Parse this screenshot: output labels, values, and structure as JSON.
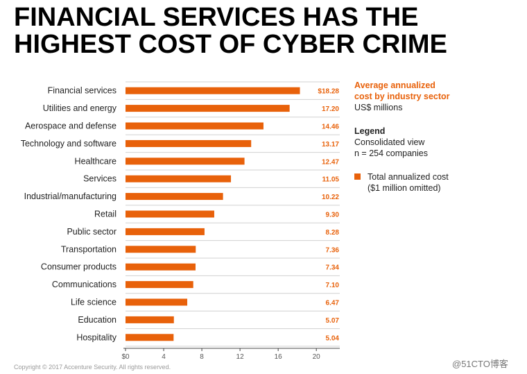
{
  "title": {
    "line1": "FINANCIAL SERVICES HAS THE",
    "line2": "HIGHEST COST OF CYBER CRIME"
  },
  "side_panel": {
    "subtitle_line1": "Average annualized",
    "subtitle_line2": "cost by industry sector",
    "unit": "US$ millions",
    "legend_heading": "Legend",
    "legend_line1": "Consolidated view",
    "legend_line2": "n = 254 companies",
    "series_label_line1": "Total annualized cost",
    "series_label_line2": "($1 million omitted)"
  },
  "footer": {
    "copyright": "Copyright © 2017 Accenture Security. All rights reserved.",
    "watermark": "@51CTO博客"
  },
  "colors": {
    "bar": "#e8610a",
    "value_text": "#e8610a",
    "grid": "#d0d0d0",
    "axis": "#444444"
  },
  "chart_data": {
    "type": "bar",
    "orientation": "horizontal",
    "categories": [
      "Financial services",
      "Utilities and energy",
      "Aerospace and defense",
      "Technology and software",
      "Healthcare",
      "Services",
      "Industrial/manufacturing",
      "Retail",
      "Public sector",
      "Transportation",
      "Consumer products",
      "Communications",
      "Life science",
      "Education",
      "Hospitality"
    ],
    "values": [
      18.28,
      17.2,
      14.46,
      13.17,
      12.47,
      11.05,
      10.22,
      9.3,
      8.28,
      7.36,
      7.34,
      7.1,
      6.47,
      5.07,
      5.04
    ],
    "value_labels": [
      "$18.28",
      "17.20",
      "14.46",
      "13.17",
      "12.47",
      "11.05",
      "10.22",
      "9.30",
      "8.28",
      "7.36",
      "7.34",
      "7.10",
      "6.47",
      "5.07",
      "5.04"
    ],
    "x_ticks": [
      0,
      4,
      8,
      12,
      16,
      20
    ],
    "x_tick_labels": [
      "$0",
      "4",
      "8",
      "12",
      "16",
      "20"
    ],
    "xlim": [
      0,
      20
    ],
    "grid": "horizontal",
    "legend_position": "right"
  }
}
